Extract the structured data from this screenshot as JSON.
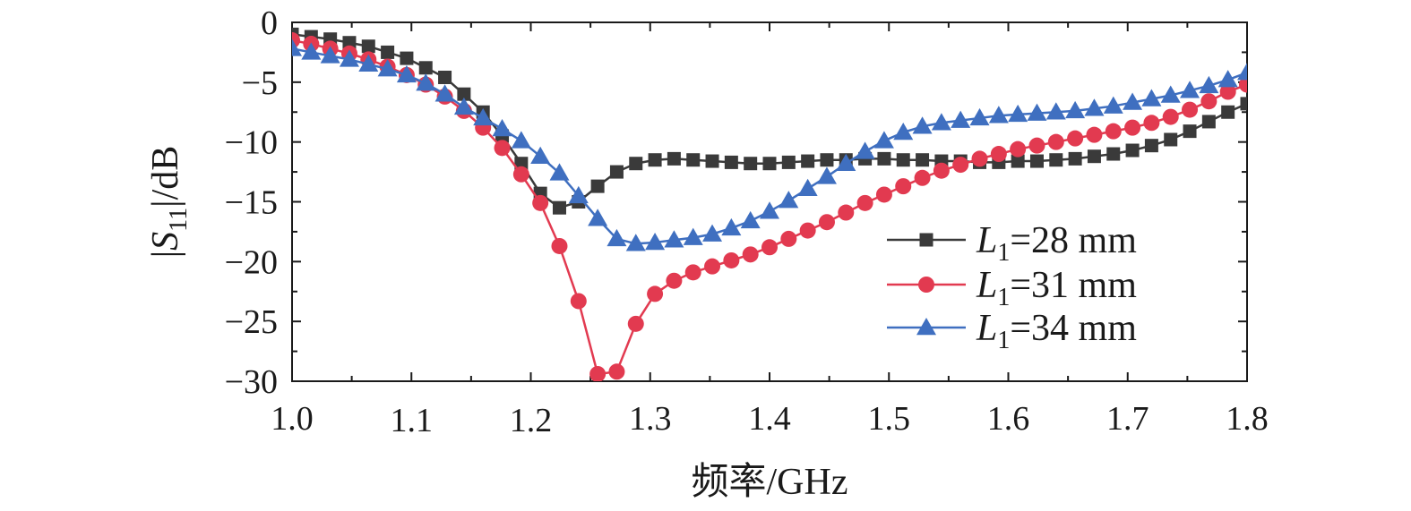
{
  "chart_data": {
    "type": "line",
    "xlabel": "频率/GHz",
    "ylabel": "|S11|/dB",
    "ylabel_parts": [
      "|",
      "S",
      "11",
      "|/dB"
    ],
    "xlim": [
      1.0,
      1.8
    ],
    "ylim": [
      -30,
      0
    ],
    "xticks": [
      "1.0",
      "1.1",
      "1.2",
      "1.3",
      "1.4",
      "1.5",
      "1.6",
      "1.7",
      "1.8"
    ],
    "yticks": [
      "0",
      "−5",
      "−10",
      "−15",
      "−20",
      "−25",
      "−30"
    ],
    "grid": false,
    "legend_position": "right",
    "series": [
      {
        "name": "L1=28 mm",
        "legend_parts": [
          "L",
          "1",
          "=28 mm"
        ],
        "color": "#3a3a3a",
        "marker": "square",
        "x": [
          1.0,
          1.016,
          1.032,
          1.048,
          1.064,
          1.08,
          1.096,
          1.112,
          1.128,
          1.144,
          1.16,
          1.176,
          1.192,
          1.208,
          1.224,
          1.24,
          1.256,
          1.272,
          1.288,
          1.304,
          1.32,
          1.336,
          1.352,
          1.368,
          1.384,
          1.4,
          1.416,
          1.432,
          1.448,
          1.464,
          1.48,
          1.496,
          1.512,
          1.528,
          1.544,
          1.56,
          1.576,
          1.592,
          1.608,
          1.624,
          1.64,
          1.656,
          1.672,
          1.688,
          1.704,
          1.72,
          1.736,
          1.752,
          1.768,
          1.784,
          1.8
        ],
        "y": [
          -1.0,
          -1.2,
          -1.4,
          -1.7,
          -2.0,
          -2.5,
          -3.0,
          -3.8,
          -4.6,
          -6.0,
          -7.5,
          -9.5,
          -11.8,
          -14.3,
          -15.5,
          -15.0,
          -13.7,
          -12.5,
          -11.8,
          -11.5,
          -11.4,
          -11.5,
          -11.6,
          -11.7,
          -11.8,
          -11.8,
          -11.7,
          -11.6,
          -11.5,
          -11.5,
          -11.4,
          -11.4,
          -11.5,
          -11.5,
          -11.6,
          -11.6,
          -11.7,
          -11.7,
          -11.6,
          -11.6,
          -11.5,
          -11.4,
          -11.2,
          -11.0,
          -10.7,
          -10.3,
          -9.8,
          -9.1,
          -8.3,
          -7.5,
          -6.8
        ]
      },
      {
        "name": "L1=31 mm",
        "legend_parts": [
          "L",
          "1",
          "=31 mm"
        ],
        "color": "#e23a50",
        "marker": "circle",
        "x": [
          1.0,
          1.016,
          1.032,
          1.048,
          1.064,
          1.08,
          1.096,
          1.112,
          1.128,
          1.144,
          1.16,
          1.176,
          1.192,
          1.208,
          1.224,
          1.24,
          1.256,
          1.272,
          1.288,
          1.304,
          1.32,
          1.336,
          1.352,
          1.368,
          1.384,
          1.4,
          1.416,
          1.432,
          1.448,
          1.464,
          1.48,
          1.496,
          1.512,
          1.528,
          1.544,
          1.56,
          1.576,
          1.592,
          1.608,
          1.624,
          1.64,
          1.656,
          1.672,
          1.688,
          1.704,
          1.72,
          1.736,
          1.752,
          1.768,
          1.784,
          1.8
        ],
        "y": [
          -1.5,
          -1.8,
          -2.2,
          -2.6,
          -3.1,
          -3.7,
          -4.4,
          -5.2,
          -6.2,
          -7.4,
          -8.8,
          -10.5,
          -12.7,
          -15.1,
          -18.7,
          -23.3,
          -29.4,
          -29.2,
          -25.2,
          -22.7,
          -21.6,
          -20.9,
          -20.4,
          -19.9,
          -19.4,
          -18.8,
          -18.1,
          -17.4,
          -16.7,
          -15.9,
          -15.1,
          -14.4,
          -13.7,
          -13.0,
          -12.4,
          -11.9,
          -11.4,
          -11.0,
          -10.6,
          -10.3,
          -10.0,
          -9.7,
          -9.4,
          -9.1,
          -8.8,
          -8.4,
          -7.9,
          -7.3,
          -6.6,
          -5.8,
          -5.2
        ]
      },
      {
        "name": "L1=34 mm",
        "legend_parts": [
          "L",
          "1",
          "=34 mm"
        ],
        "color": "#3f6fc0",
        "marker": "triangle",
        "x": [
          1.0,
          1.016,
          1.032,
          1.048,
          1.064,
          1.08,
          1.096,
          1.112,
          1.128,
          1.144,
          1.16,
          1.176,
          1.192,
          1.208,
          1.224,
          1.24,
          1.256,
          1.272,
          1.288,
          1.304,
          1.32,
          1.336,
          1.352,
          1.368,
          1.384,
          1.4,
          1.416,
          1.432,
          1.448,
          1.464,
          1.48,
          1.496,
          1.512,
          1.528,
          1.544,
          1.56,
          1.576,
          1.592,
          1.608,
          1.624,
          1.64,
          1.656,
          1.672,
          1.688,
          1.704,
          1.72,
          1.736,
          1.752,
          1.768,
          1.784,
          1.8
        ],
        "y": [
          -2.2,
          -2.5,
          -2.8,
          -3.1,
          -3.5,
          -3.9,
          -4.4,
          -5.1,
          -6.0,
          -7.1,
          -8.0,
          -8.9,
          -9.9,
          -11.2,
          -12.6,
          -14.5,
          -16.4,
          -18.1,
          -18.5,
          -18.4,
          -18.2,
          -18.0,
          -17.7,
          -17.2,
          -16.6,
          -15.8,
          -14.9,
          -13.9,
          -12.9,
          -11.8,
          -10.8,
          -9.9,
          -9.2,
          -8.7,
          -8.4,
          -8.2,
          -8.0,
          -7.8,
          -7.7,
          -7.6,
          -7.5,
          -7.4,
          -7.2,
          -7.0,
          -6.7,
          -6.4,
          -6.1,
          -5.7,
          -5.3,
          -4.8,
          -4.2
        ]
      }
    ]
  }
}
